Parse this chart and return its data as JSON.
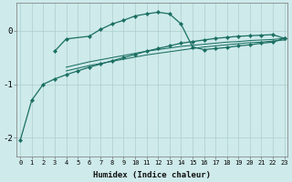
{
  "xlabel": "Humidex (Indice chaleur)",
  "background_color": "#ceeaea",
  "grid_color": "#aecece",
  "line_color": "#1a6e62",
  "x_all": [
    0,
    1,
    2,
    3,
    4,
    5,
    6,
    7,
    8,
    9,
    10,
    11,
    12,
    13,
    14,
    15,
    16,
    17,
    18,
    19,
    20,
    21,
    22,
    23
  ],
  "line1_y": [
    -2.05,
    -1.3,
    -1.0,
    -0.9,
    -0.82,
    -0.75,
    -0.68,
    -0.62,
    -0.56,
    -0.5,
    -0.44,
    -0.38,
    -0.33,
    -0.28,
    -0.23,
    -0.2,
    -0.17,
    -0.14,
    -0.12,
    -0.1,
    -0.09,
    -0.08,
    -0.07,
    -0.14
  ],
  "line2_x": [
    3,
    4,
    6,
    7,
    8,
    9,
    10,
    11,
    12,
    13,
    14,
    15,
    16,
    17,
    18,
    19,
    20,
    21,
    22,
    23
  ],
  "line2_y": [
    -0.38,
    -0.15,
    -0.1,
    0.03,
    0.13,
    0.2,
    0.28,
    0.32,
    0.35,
    0.32,
    0.13,
    -0.3,
    -0.35,
    -0.33,
    -0.31,
    -0.28,
    -0.26,
    -0.23,
    -0.21,
    -0.14
  ],
  "line3_x": [
    4,
    5,
    6,
    7,
    8,
    9,
    10,
    11,
    12,
    13,
    14,
    15,
    16,
    17,
    18,
    19,
    20,
    21,
    22,
    23
  ],
  "line3_y": [
    -0.68,
    -0.63,
    -0.58,
    -0.54,
    -0.5,
    -0.46,
    -0.42,
    -0.38,
    -0.35,
    -0.32,
    -0.29,
    -0.27,
    -0.25,
    -0.23,
    -0.21,
    -0.2,
    -0.18,
    -0.17,
    -0.16,
    -0.14
  ],
  "line4_x": [
    4,
    5,
    6,
    7,
    8,
    9,
    10,
    11,
    12,
    13,
    14,
    15,
    16,
    17,
    18,
    19,
    20,
    21,
    22,
    23
  ],
  "line4_y": [
    -0.75,
    -0.7,
    -0.65,
    -0.61,
    -0.57,
    -0.53,
    -0.49,
    -0.45,
    -0.42,
    -0.39,
    -0.36,
    -0.33,
    -0.3,
    -0.28,
    -0.26,
    -0.24,
    -0.22,
    -0.21,
    -0.19,
    -0.17
  ],
  "ylim": [
    -2.35,
    0.52
  ],
  "xlim": [
    -0.3,
    23.3
  ],
  "yticks": [
    -2,
    -1,
    0
  ],
  "xticks": [
    0,
    1,
    2,
    3,
    4,
    5,
    6,
    7,
    8,
    9,
    10,
    11,
    12,
    13,
    14,
    15,
    16,
    17,
    18,
    19,
    20,
    21,
    22,
    23
  ]
}
